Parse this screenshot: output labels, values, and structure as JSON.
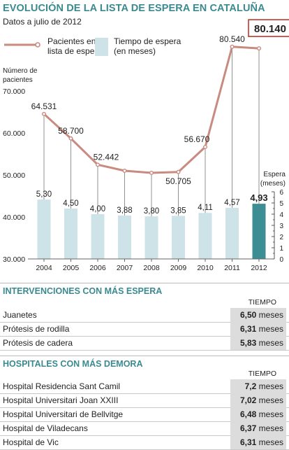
{
  "header": {
    "title": "EVOLUCIÓN DE LA LISTA DE ESPERA EN CATALUÑA",
    "subtitle": "Datos a julio de 2012"
  },
  "colors": {
    "accent": "#3a8a8f",
    "line": "#c98a80",
    "bar": "#cde3e7",
    "bar_highlight": "#3d8d94"
  },
  "chart_data": {
    "type": "bar+line",
    "categories": [
      "2004",
      "2005",
      "2006",
      "2007",
      "2008",
      "2009",
      "2010",
      "2011",
      "2012"
    ],
    "line_series": {
      "name": "Pacientes en lista de espera",
      "axis": "left",
      "values": [
        64531,
        58700,
        52442,
        51000,
        50500,
        50705,
        56670,
        80540,
        80140
      ],
      "labels": [
        "64.531",
        "58.700",
        "52.442",
        "",
        "",
        "50.705",
        "56.670",
        "80.540",
        "80.140"
      ]
    },
    "bar_series": {
      "name": "Tiempo de espera (en meses)",
      "axis": "right",
      "values": [
        5.3,
        4.5,
        4.0,
        3.88,
        3.8,
        3.85,
        4.11,
        4.57,
        4.93
      ],
      "labels": [
        "5,30",
        "4,50",
        "4,00",
        "3,88",
        "3,80",
        "3,85",
        "4,11",
        "4,57",
        "4,93"
      ]
    },
    "legend": {
      "line_label_1": "Pacientes en",
      "line_label_2": "lista de espera",
      "bar_label_1": "Tiempo de espera",
      "bar_label_2": "(en meses)"
    },
    "left_axis": {
      "title_1": "Número de",
      "title_2": "pacientes",
      "ticks": [
        30000,
        40000,
        50000,
        60000,
        70000
      ],
      "tick_labels": [
        "30.000",
        "40.000",
        "50.000",
        "60.000",
        "70.000"
      ],
      "range": [
        30000,
        70000
      ]
    },
    "right_axis": {
      "title_1": "Espera",
      "title_2": "(meses)",
      "ticks": [
        0,
        1,
        2,
        3,
        4,
        5,
        6
      ],
      "tick_labels": [
        "0",
        "1",
        "2",
        "3",
        "4",
        "5",
        "6"
      ],
      "range": [
        0,
        6
      ]
    },
    "highlight_category": "2012",
    "grid": false
  },
  "interventions": {
    "title": "INTERVENCIONES CON MÁS ESPERA",
    "column_header": "TIEMPO",
    "unit": "meses",
    "rows": [
      {
        "name": "Juanetes",
        "value": "6,50"
      },
      {
        "name": "Prótesis de rodilla",
        "value": "6,31"
      },
      {
        "name": "Prótesis de cadera",
        "value": "5,83"
      }
    ]
  },
  "hospitals": {
    "title": "HOSPITALES CON MÁS DEMORA",
    "column_header": "TIEMPO",
    "unit": "meses",
    "rows": [
      {
        "name": "Hospital Residencia Sant Camil",
        "value": "7,2"
      },
      {
        "name": "Hospital Universitari Joan XXIII",
        "value": "7,02"
      },
      {
        "name": "Hospital Universitari de Bellvitge",
        "value": "6,48"
      },
      {
        "name": "Hospital de Viladecans",
        "value": "6,37"
      },
      {
        "name": "Hospital de Vic",
        "value": "6,31"
      }
    ]
  }
}
